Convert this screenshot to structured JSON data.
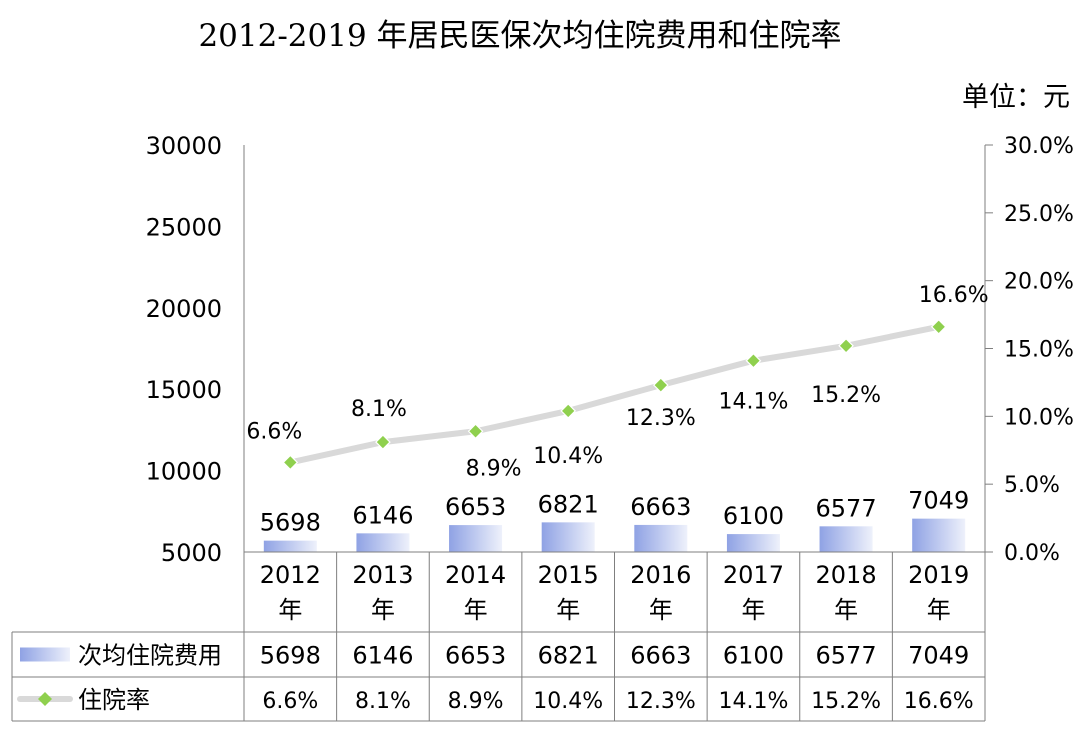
{
  "chart_data": {
    "type": "bar",
    "title": "2012-2019 年居民医保次均住院费用和住院率",
    "unit_label": "单位：元",
    "categories": [
      "2012\n年",
      "2013\n年",
      "2014\n年",
      "2015\n年",
      "2016\n年",
      "2017\n年",
      "2018\n年",
      "2019\n年"
    ],
    "y_left": {
      "min": 5000,
      "max": 30000,
      "ticks": [
        "30000",
        "25000",
        "20000",
        "15000",
        "10000",
        "5000"
      ]
    },
    "y_right": {
      "min": 0,
      "max": 30,
      "ticks": [
        "30.0%",
        "25.0%",
        "20.0%",
        "15.0%",
        "10.0%",
        "5.0%",
        "0.0%"
      ]
    },
    "series": [
      {
        "name": "次均住院费用",
        "kind": "bar",
        "axis": "left",
        "values": [
          5698,
          6146,
          6653,
          6821,
          6663,
          6100,
          6577,
          7049
        ],
        "labels": [
          "5698",
          "6146",
          "6653",
          "6821",
          "6663",
          "6100",
          "6577",
          "7049"
        ]
      },
      {
        "name": "住院率",
        "kind": "line",
        "axis": "right",
        "values": [
          6.6,
          8.1,
          8.9,
          10.4,
          12.3,
          14.1,
          15.2,
          16.6
        ],
        "labels": [
          "6.6%",
          "8.1%",
          "8.9%",
          "10.4%",
          "12.3%",
          "14.1%",
          "15.2%",
          "16.6%"
        ]
      }
    ],
    "data_table": true,
    "colors": {
      "bar_start": "#8fa2e4",
      "bar_end": "#eef1fb",
      "line": "#d9d9d9",
      "marker": "#8fd04e",
      "grid_line": "#7f7f7f"
    }
  }
}
